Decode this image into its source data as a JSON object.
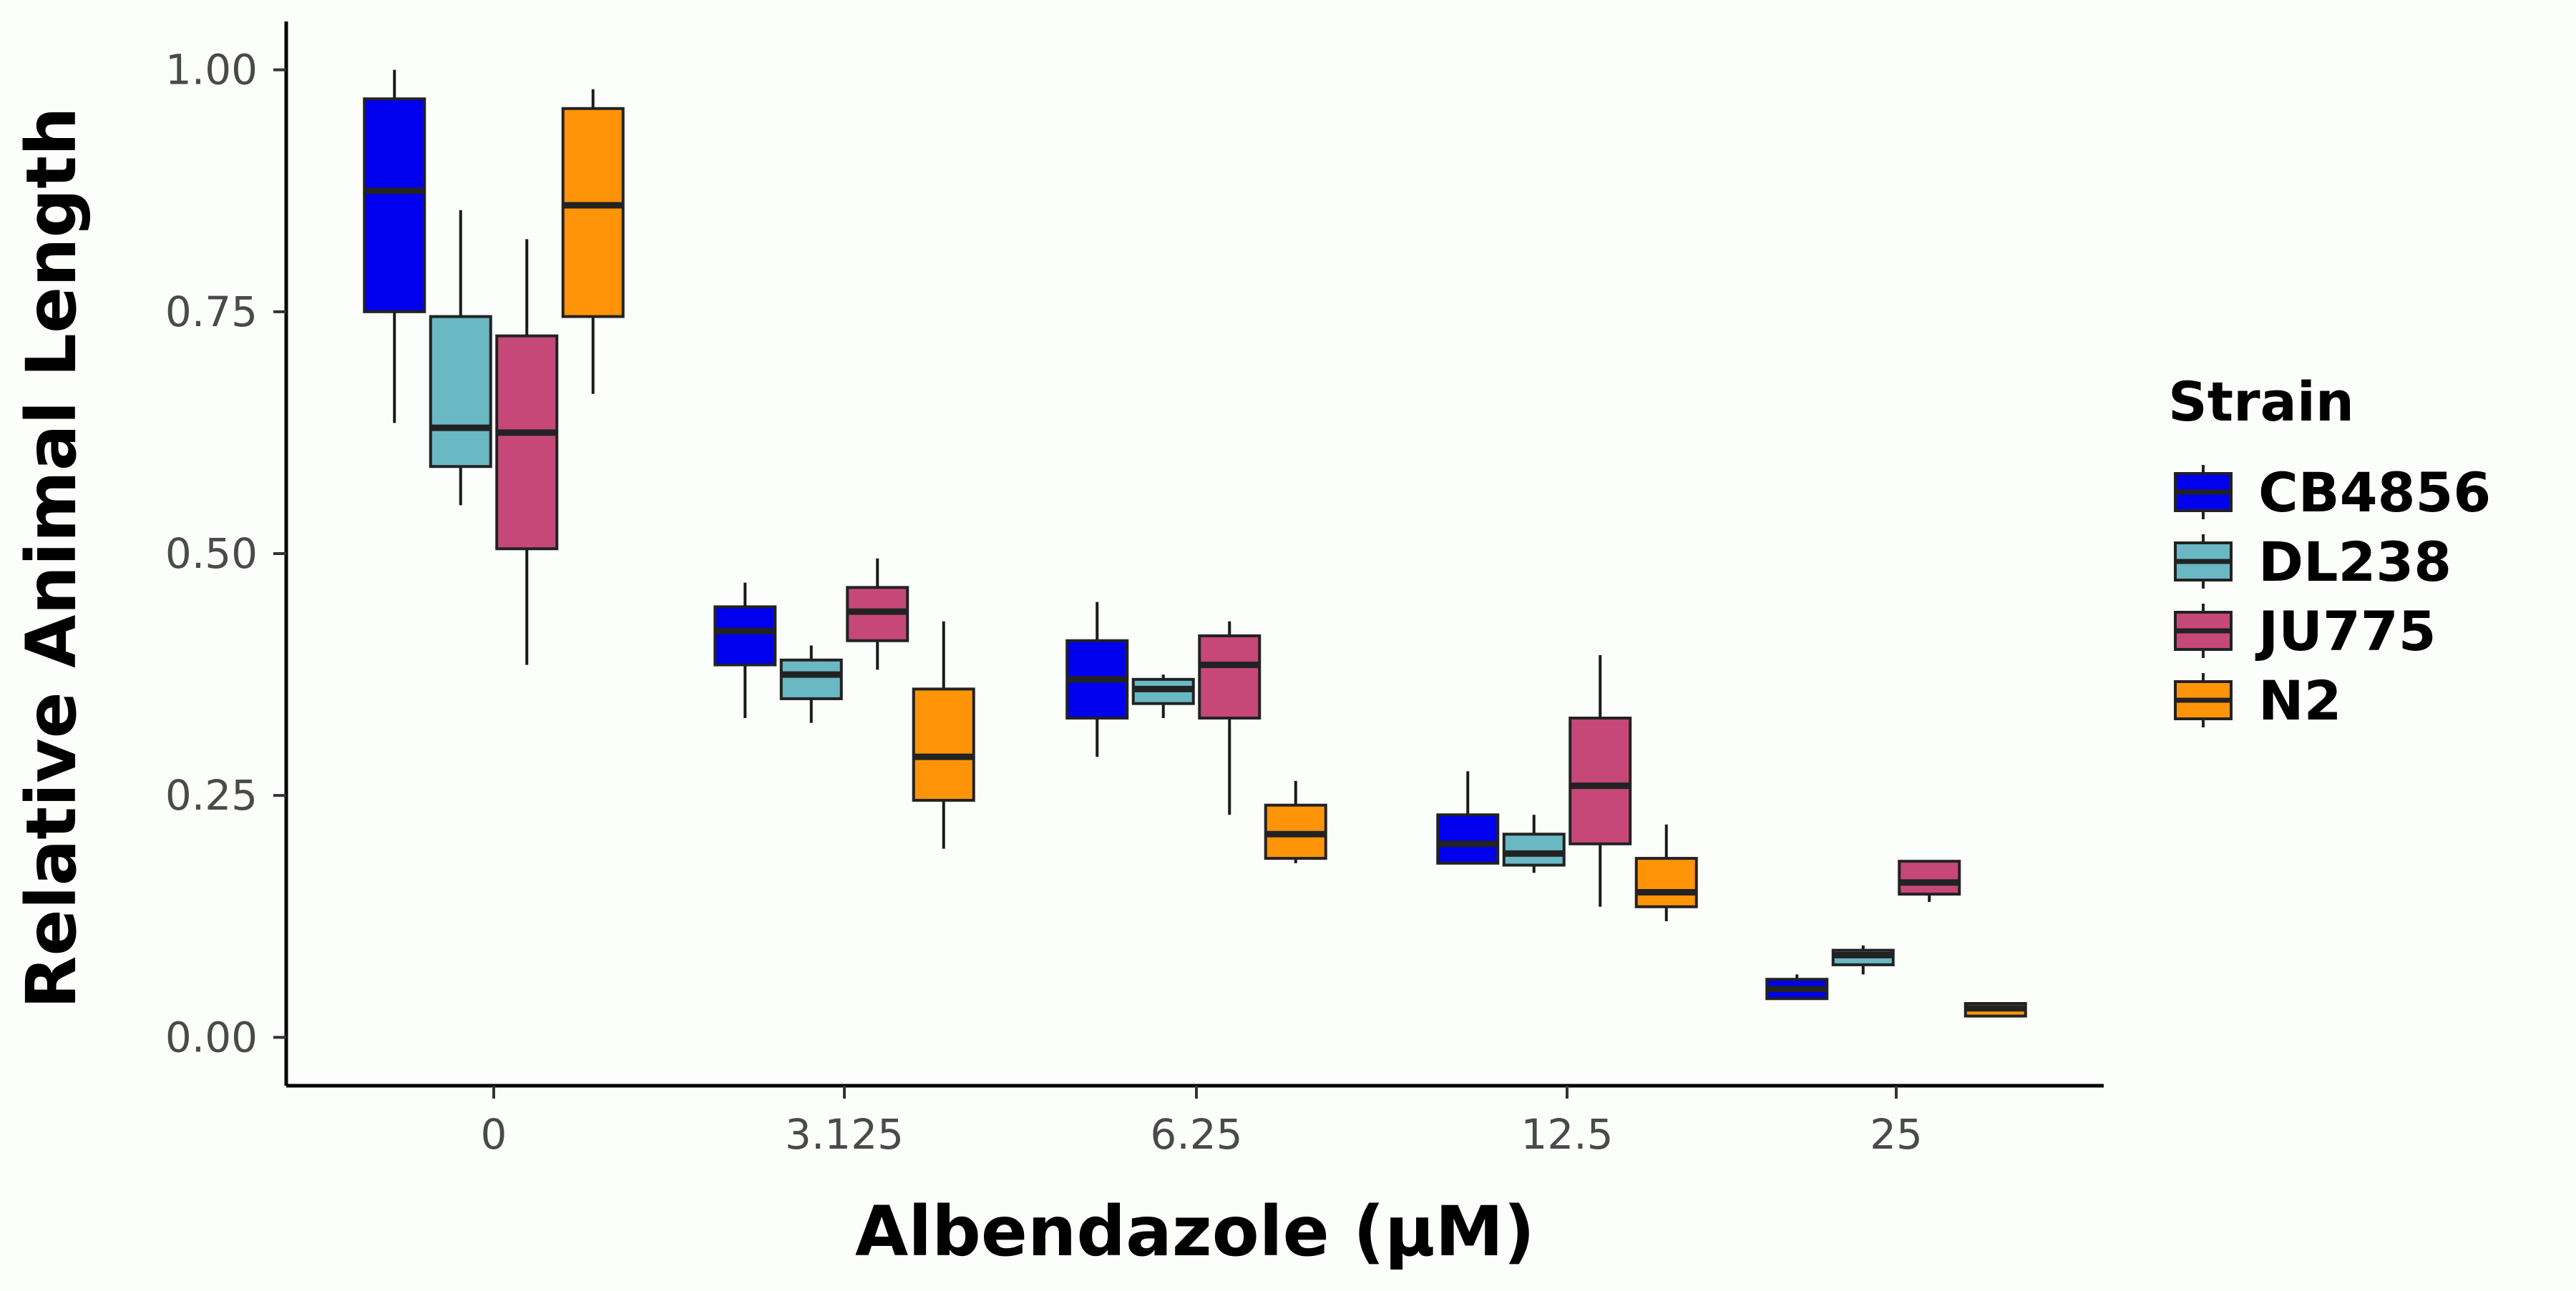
{
  "chart_data": {
    "type": "box",
    "xlabel": "Albendazole (μM)",
    "ylabel": "Relative Animal Length",
    "categories": [
      "0",
      "3.125",
      "6.25",
      "12.5",
      "25"
    ],
    "y_ticks": [
      "0.00",
      "0.25",
      "0.50",
      "0.75",
      "1.00"
    ],
    "ylim": [
      -0.05,
      1.05
    ],
    "grid": false,
    "legend": {
      "title": "Strain",
      "placement": "right"
    },
    "series": [
      {
        "name": "CB4856",
        "color": "#0000ee",
        "boxes": [
          {
            "min": 0.635,
            "q1": 0.75,
            "median": 0.875,
            "q3": 0.97,
            "max": 1.0
          },
          {
            "min": 0.33,
            "q1": 0.385,
            "median": 0.42,
            "q3": 0.445,
            "max": 0.47
          },
          {
            "min": 0.29,
            "q1": 0.33,
            "median": 0.37,
            "q3": 0.41,
            "max": 0.45
          },
          {
            "min": 0.18,
            "q1": 0.18,
            "median": 0.2,
            "q3": 0.23,
            "max": 0.275
          },
          {
            "min": 0.04,
            "q1": 0.04,
            "median": 0.05,
            "q3": 0.06,
            "max": 0.065
          }
        ]
      },
      {
        "name": "DL238",
        "color": "#69b8c4",
        "boxes": [
          {
            "min": 0.55,
            "q1": 0.59,
            "median": 0.63,
            "q3": 0.745,
            "max": 0.855
          },
          {
            "min": 0.325,
            "q1": 0.35,
            "median": 0.375,
            "q3": 0.39,
            "max": 0.405
          },
          {
            "min": 0.33,
            "q1": 0.345,
            "median": 0.36,
            "q3": 0.37,
            "max": 0.375
          },
          {
            "min": 0.17,
            "q1": 0.178,
            "median": 0.19,
            "q3": 0.21,
            "max": 0.23
          },
          {
            "min": 0.065,
            "q1": 0.075,
            "median": 0.085,
            "q3": 0.09,
            "max": 0.095
          }
        ]
      },
      {
        "name": "JU775",
        "color": "#c64878",
        "boxes": [
          {
            "min": 0.385,
            "q1": 0.505,
            "median": 0.625,
            "q3": 0.725,
            "max": 0.825
          },
          {
            "min": 0.38,
            "q1": 0.41,
            "median": 0.44,
            "q3": 0.465,
            "max": 0.495
          },
          {
            "min": 0.23,
            "q1": 0.33,
            "median": 0.385,
            "q3": 0.415,
            "max": 0.43
          },
          {
            "min": 0.135,
            "q1": 0.2,
            "median": 0.26,
            "q3": 0.33,
            "max": 0.395
          },
          {
            "min": 0.14,
            "q1": 0.148,
            "median": 0.16,
            "q3": 0.182,
            "max": 0.182
          }
        ]
      },
      {
        "name": "N2",
        "color": "#ff9408",
        "boxes": [
          {
            "min": 0.665,
            "q1": 0.745,
            "median": 0.86,
            "q3": 0.96,
            "max": 0.98
          },
          {
            "min": 0.195,
            "q1": 0.245,
            "median": 0.29,
            "q3": 0.36,
            "max": 0.43
          },
          {
            "min": 0.18,
            "q1": 0.185,
            "median": 0.21,
            "q3": 0.24,
            "max": 0.265
          },
          {
            "min": 0.12,
            "q1": 0.135,
            "median": 0.15,
            "q3": 0.185,
            "max": 0.22
          },
          {
            "min": 0.022,
            "q1": 0.022,
            "median": 0.03,
            "q3": 0.035,
            "max": 0.035
          }
        ]
      }
    ]
  }
}
